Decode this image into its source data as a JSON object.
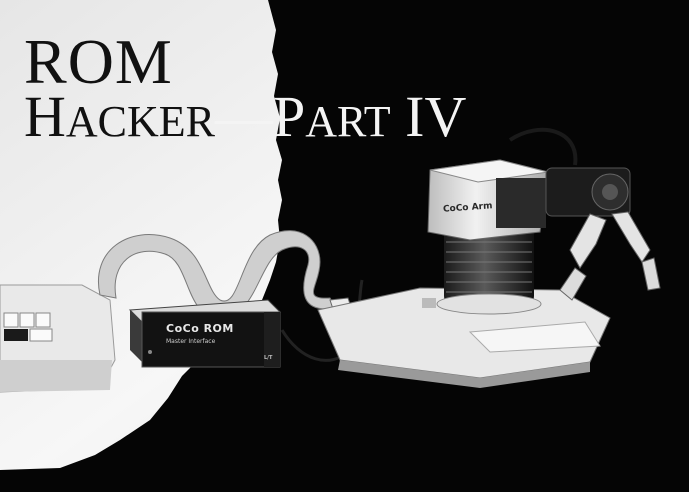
{
  "title": {
    "line1": "ROM",
    "line2_dark": "H",
    "line2_dark_small": "ACKER",
    "line2_dash": "––",
    "line2_light": "P",
    "line2_light_small": "ART",
    "line2_light_tail": " IV"
  },
  "rom_box": {
    "label": "CoCo ROM",
    "sublabel": "Master Interface",
    "corner": "L/T"
  },
  "arm": {
    "label": "CoCo Arm"
  },
  "colors": {
    "background_left": "#f2f2f2",
    "background_right": "#050505",
    "title_dark": "#111111",
    "title_light": "#f4f4f4"
  }
}
